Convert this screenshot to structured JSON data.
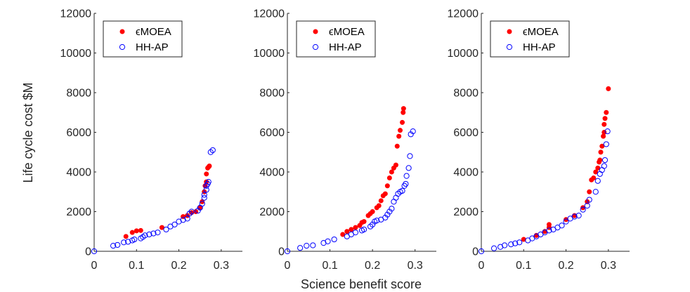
{
  "figure": {
    "xlabel": "Science benefit score",
    "ylabel": "Life cycle cost $M",
    "colors": {
      "emoea": "#ff0000",
      "hhap": "#0000ff",
      "axis": "#262626"
    }
  },
  "chart_data": [
    {
      "type": "scatter",
      "title": "",
      "xlim": [
        0,
        0.35
      ],
      "ylim": [
        0,
        12000
      ],
      "xticks": [
        0,
        0.1,
        0.2,
        0.3
      ],
      "xticklabels": [
        "0",
        "0.1",
        "0.2",
        "0.3"
      ],
      "yticks": [
        0,
        2000,
        4000,
        6000,
        8000,
        10000,
        12000
      ],
      "yticklabels": [
        "0",
        "2000",
        "4000",
        "6000",
        "8000",
        "10000",
        "12000"
      ],
      "legend": "top-left",
      "series": [
        {
          "name": "ϵMOEA",
          "marker": "filled-circle",
          "color": "#ff0000",
          "points": [
            [
              0.075,
              750
            ],
            [
              0.09,
              950
            ],
            [
              0.1,
              1030
            ],
            [
              0.11,
              1050
            ],
            [
              0.16,
              1200
            ],
            [
              0.21,
              1750
            ],
            [
              0.22,
              1800
            ],
            [
              0.23,
              1950
            ],
            [
              0.24,
              2000
            ],
            [
              0.25,
              2200
            ],
            [
              0.255,
              2500
            ],
            [
              0.26,
              3000
            ],
            [
              0.262,
              3300
            ],
            [
              0.265,
              3500
            ],
            [
              0.265,
              3900
            ],
            [
              0.268,
              4200
            ],
            [
              0.27,
              4250
            ],
            [
              0.272,
              4300
            ]
          ]
        },
        {
          "name": "HH-AP",
          "marker": "open-circle",
          "color": "#0000ff",
          "points": [
            [
              0,
              0
            ],
            [
              0.045,
              280
            ],
            [
              0.055,
              320
            ],
            [
              0.07,
              450
            ],
            [
              0.08,
              480
            ],
            [
              0.09,
              550
            ],
            [
              0.095,
              600
            ],
            [
              0.11,
              650
            ],
            [
              0.115,
              720
            ],
            [
              0.12,
              800
            ],
            [
              0.13,
              850
            ],
            [
              0.14,
              900
            ],
            [
              0.15,
              950
            ],
            [
              0.17,
              1100
            ],
            [
              0.18,
              1250
            ],
            [
              0.19,
              1350
            ],
            [
              0.2,
              1500
            ],
            [
              0.21,
              1580
            ],
            [
              0.22,
              1650
            ],
            [
              0.225,
              1900
            ],
            [
              0.23,
              2000
            ],
            [
              0.245,
              2050
            ],
            [
              0.25,
              2200
            ],
            [
              0.255,
              2400
            ],
            [
              0.26,
              2700
            ],
            [
              0.26,
              2850
            ],
            [
              0.265,
              3100
            ],
            [
              0.265,
              3300
            ],
            [
              0.268,
              3400
            ],
            [
              0.27,
              3500
            ],
            [
              0.275,
              5000
            ],
            [
              0.28,
              5100
            ]
          ]
        }
      ]
    },
    {
      "type": "scatter",
      "title": "",
      "xlim": [
        0,
        0.35
      ],
      "ylim": [
        0,
        12000
      ],
      "xticks": [
        0,
        0.1,
        0.2,
        0.3
      ],
      "xticklabels": [
        "0",
        "0.1",
        "0.2",
        "0.3"
      ],
      "yticks": [
        0,
        2000,
        4000,
        6000,
        8000,
        10000,
        12000
      ],
      "yticklabels": [
        "0",
        "2000",
        "4000",
        "6000",
        "8000",
        "10000",
        "12000"
      ],
      "legend": "top-left",
      "series": [
        {
          "name": "ϵMOEA",
          "marker": "filled-circle",
          "color": "#ff0000",
          "points": [
            [
              0.13,
              850
            ],
            [
              0.14,
              1000
            ],
            [
              0.15,
              1100
            ],
            [
              0.16,
              1200
            ],
            [
              0.17,
              1300
            ],
            [
              0.175,
              1450
            ],
            [
              0.18,
              1500
            ],
            [
              0.19,
              1800
            ],
            [
              0.195,
              1900
            ],
            [
              0.2,
              2000
            ],
            [
              0.21,
              2200
            ],
            [
              0.215,
              2300
            ],
            [
              0.22,
              2550
            ],
            [
              0.225,
              2800
            ],
            [
              0.23,
              2900
            ],
            [
              0.235,
              3300
            ],
            [
              0.24,
              3700
            ],
            [
              0.245,
              4000
            ],
            [
              0.25,
              4200
            ],
            [
              0.255,
              4350
            ],
            [
              0.258,
              5300
            ],
            [
              0.262,
              5800
            ],
            [
              0.265,
              6100
            ],
            [
              0.27,
              6500
            ],
            [
              0.272,
              7000
            ],
            [
              0.273,
              7200
            ]
          ]
        },
        {
          "name": "HH-AP",
          "marker": "open-circle",
          "color": "#0000ff",
          "points": [
            [
              0,
              0
            ],
            [
              0.03,
              170
            ],
            [
              0.045,
              280
            ],
            [
              0.06,
              300
            ],
            [
              0.085,
              420
            ],
            [
              0.095,
              500
            ],
            [
              0.11,
              600
            ],
            [
              0.14,
              750
            ],
            [
              0.15,
              850
            ],
            [
              0.16,
              950
            ],
            [
              0.175,
              1050
            ],
            [
              0.18,
              1100
            ],
            [
              0.195,
              1250
            ],
            [
              0.2,
              1350
            ],
            [
              0.205,
              1500
            ],
            [
              0.21,
              1550
            ],
            [
              0.22,
              1600
            ],
            [
              0.23,
              1700
            ],
            [
              0.235,
              1850
            ],
            [
              0.24,
              2000
            ],
            [
              0.245,
              2150
            ],
            [
              0.25,
              2500
            ],
            [
              0.255,
              2700
            ],
            [
              0.26,
              2900
            ],
            [
              0.265,
              3000
            ],
            [
              0.27,
              3050
            ],
            [
              0.275,
              3300
            ],
            [
              0.278,
              3400
            ],
            [
              0.28,
              3800
            ],
            [
              0.285,
              4200
            ],
            [
              0.288,
              4800
            ],
            [
              0.29,
              5900
            ],
            [
              0.295,
              6050
            ]
          ]
        }
      ]
    },
    {
      "type": "scatter",
      "title": "",
      "xlim": [
        0,
        0.35
      ],
      "ylim": [
        0,
        12000
      ],
      "xticks": [
        0,
        0.1,
        0.2,
        0.3
      ],
      "xticklabels": [
        "0",
        "0.1",
        "0.2",
        "0.3"
      ],
      "yticks": [
        0,
        2000,
        4000,
        6000,
        8000,
        10000,
        12000
      ],
      "yticklabels": [
        "0",
        "2000",
        "4000",
        "6000",
        "8000",
        "10000",
        "12000"
      ],
      "legend": "top-left",
      "series": [
        {
          "name": "ϵMOEA",
          "marker": "filled-circle",
          "color": "#ff0000",
          "points": [
            [
              0.1,
              600
            ],
            [
              0.13,
              800
            ],
            [
              0.15,
              1000
            ],
            [
              0.16,
              1200
            ],
            [
              0.16,
              1350
            ],
            [
              0.2,
              1600
            ],
            [
              0.22,
              1800
            ],
            [
              0.24,
              2200
            ],
            [
              0.25,
              2500
            ],
            [
              0.255,
              3000
            ],
            [
              0.26,
              3600
            ],
            [
              0.265,
              3700
            ],
            [
              0.27,
              4000
            ],
            [
              0.275,
              4200
            ],
            [
              0.278,
              4500
            ],
            [
              0.28,
              4600
            ],
            [
              0.282,
              5000
            ],
            [
              0.285,
              5300
            ],
            [
              0.288,
              5800
            ],
            [
              0.29,
              6000
            ],
            [
              0.29,
              6400
            ],
            [
              0.292,
              6700
            ],
            [
              0.295,
              7000
            ],
            [
              0.3,
              8200
            ]
          ]
        },
        {
          "name": "HH-AP",
          "marker": "open-circle",
          "color": "#0000ff",
          "points": [
            [
              0,
              0
            ],
            [
              0.03,
              150
            ],
            [
              0.045,
              220
            ],
            [
              0.055,
              300
            ],
            [
              0.07,
              350
            ],
            [
              0.08,
              400
            ],
            [
              0.09,
              450
            ],
            [
              0.11,
              550
            ],
            [
              0.12,
              650
            ],
            [
              0.13,
              750
            ],
            [
              0.14,
              850
            ],
            [
              0.15,
              950
            ],
            [
              0.16,
              1050
            ],
            [
              0.17,
              1100
            ],
            [
              0.18,
              1200
            ],
            [
              0.19,
              1300
            ],
            [
              0.2,
              1500
            ],
            [
              0.21,
              1650
            ],
            [
              0.22,
              1750
            ],
            [
              0.23,
              1800
            ],
            [
              0.24,
              2100
            ],
            [
              0.25,
              2300
            ],
            [
              0.255,
              2600
            ],
            [
              0.27,
              3000
            ],
            [
              0.275,
              3550
            ],
            [
              0.28,
              3900
            ],
            [
              0.285,
              4100
            ],
            [
              0.29,
              4300
            ],
            [
              0.292,
              4600
            ],
            [
              0.295,
              5400
            ],
            [
              0.298,
              6050
            ]
          ]
        }
      ]
    }
  ]
}
